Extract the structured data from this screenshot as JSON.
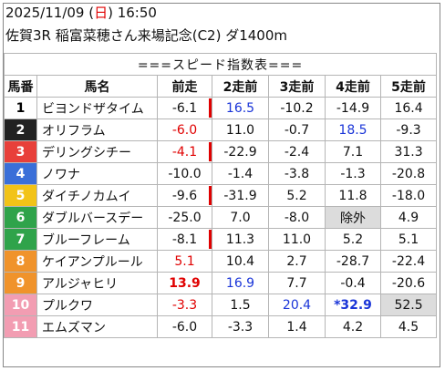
{
  "header": {
    "date_prefix": "2025/11/09 (",
    "weekday": "日",
    "date_suffix": ") 16:50",
    "race_line": "佐賀3R 稲富菜穂さん来場記念(C2) ダ1400m"
  },
  "table": {
    "title": "===スピード指数表===",
    "columns": [
      "馬番",
      "馬名",
      "前走",
      "2走前",
      "3走前",
      "4走前",
      "5走前"
    ],
    "rows": [
      {
        "num": "1",
        "name": "ビヨンドザタイム",
        "bg": "#ffffff",
        "fg": "#000000",
        "vals": [
          "-6.1",
          "16.5",
          "-10.2",
          "-14.9",
          "16.4"
        ],
        "colors": [
          "#111111",
          "#1a35d8",
          "#111111",
          "#111111",
          "#111111"
        ],
        "bold": [
          false,
          false,
          false,
          false,
          false
        ],
        "cellbg": [
          "",
          "",
          "",
          "",
          ""
        ],
        "redbar": true
      },
      {
        "num": "2",
        "name": "オリフラム",
        "bg": "#222222",
        "fg": "#ffffff",
        "vals": [
          "-6.0",
          "11.0",
          "-0.7",
          "18.5",
          "-9.3"
        ],
        "colors": [
          "#e00000",
          "#111111",
          "#111111",
          "#1a35d8",
          "#111111"
        ],
        "bold": [
          false,
          false,
          false,
          false,
          false
        ],
        "cellbg": [
          "",
          "",
          "",
          "",
          ""
        ],
        "redbar": false
      },
      {
        "num": "3",
        "name": "デリングシチー",
        "bg": "#e8403a",
        "fg": "#ffffff",
        "vals": [
          "-4.1",
          "-22.9",
          "-2.4",
          "7.1",
          "31.3"
        ],
        "colors": [
          "#e00000",
          "#111111",
          "#111111",
          "#111111",
          "#111111"
        ],
        "bold": [
          false,
          false,
          false,
          false,
          false
        ],
        "cellbg": [
          "",
          "",
          "",
          "",
          ""
        ],
        "redbar": true
      },
      {
        "num": "4",
        "name": "ノワナ",
        "bg": "#3a6fd8",
        "fg": "#ffffff",
        "vals": [
          "-10.0",
          "-1.4",
          "-3.8",
          "-1.3",
          "-20.8"
        ],
        "colors": [
          "#111111",
          "#111111",
          "#111111",
          "#111111",
          "#111111"
        ],
        "bold": [
          false,
          false,
          false,
          false,
          false
        ],
        "cellbg": [
          "",
          "",
          "",
          "",
          ""
        ],
        "redbar": false
      },
      {
        "num": "5",
        "name": "ダイチノカムイ",
        "bg": "#f2c318",
        "fg": "#ffffff",
        "vals": [
          "-9.6",
          "-31.9",
          "5.2",
          "11.8",
          "-18.0"
        ],
        "colors": [
          "#111111",
          "#111111",
          "#111111",
          "#111111",
          "#111111"
        ],
        "bold": [
          false,
          false,
          false,
          false,
          false
        ],
        "cellbg": [
          "",
          "",
          "",
          "",
          ""
        ],
        "redbar": true
      },
      {
        "num": "6",
        "name": "ダブルバースデー",
        "bg": "#2fa34a",
        "fg": "#ffffff",
        "vals": [
          "-25.0",
          "7.0",
          "-8.0",
          "除外",
          "4.9"
        ],
        "colors": [
          "#111111",
          "#111111",
          "#111111",
          "#111111",
          "#111111"
        ],
        "bold": [
          false,
          false,
          false,
          false,
          false
        ],
        "cellbg": [
          "",
          "",
          "",
          "#dcdcdc",
          ""
        ],
        "redbar": false
      },
      {
        "num": "7",
        "name": "ブルーフレーム",
        "bg": "#2fa34a",
        "fg": "#ffffff",
        "vals": [
          "-8.1",
          "11.3",
          "11.0",
          "5.2",
          "5.1"
        ],
        "colors": [
          "#111111",
          "#111111",
          "#111111",
          "#111111",
          "#111111"
        ],
        "bold": [
          false,
          false,
          false,
          false,
          false
        ],
        "cellbg": [
          "",
          "",
          "",
          "",
          ""
        ],
        "redbar": true
      },
      {
        "num": "8",
        "name": "ケイアンプルール",
        "bg": "#f0932b",
        "fg": "#ffffff",
        "vals": [
          "5.1",
          "10.4",
          "2.7",
          "-28.7",
          "-22.4"
        ],
        "colors": [
          "#e00000",
          "#111111",
          "#111111",
          "#111111",
          "#111111"
        ],
        "bold": [
          false,
          false,
          false,
          false,
          false
        ],
        "cellbg": [
          "",
          "",
          "",
          "",
          ""
        ],
        "redbar": false
      },
      {
        "num": "9",
        "name": "アルジャヒリ",
        "bg": "#f0932b",
        "fg": "#ffffff",
        "vals": [
          "13.9",
          "16.9",
          "7.7",
          "-0.4",
          "-20.6"
        ],
        "colors": [
          "#e00000",
          "#1a35d8",
          "#111111",
          "#111111",
          "#111111"
        ],
        "bold": [
          true,
          false,
          false,
          false,
          false
        ],
        "cellbg": [
          "",
          "",
          "",
          "",
          ""
        ],
        "redbar": false
      },
      {
        "num": "10",
        "name": "プルクワ",
        "bg": "#f29db2",
        "fg": "#ffffff",
        "vals": [
          "-3.3",
          "1.5",
          "20.4",
          "*32.9",
          "52.5"
        ],
        "colors": [
          "#e00000",
          "#111111",
          "#1a35d8",
          "#1a35d8",
          "#111111"
        ],
        "bold": [
          false,
          false,
          false,
          true,
          false
        ],
        "cellbg": [
          "",
          "",
          "",
          "",
          "#dcdcdc"
        ],
        "redbar": false
      },
      {
        "num": "11",
        "name": "エムズマン",
        "bg": "#f29db2",
        "fg": "#ffffff",
        "vals": [
          "-6.0",
          "-3.3",
          "1.4",
          "4.2",
          "4.5"
        ],
        "colors": [
          "#111111",
          "#111111",
          "#111111",
          "#111111",
          "#111111"
        ],
        "bold": [
          false,
          false,
          false,
          false,
          false
        ],
        "cellbg": [
          "",
          "",
          "",
          "",
          ""
        ],
        "redbar": false
      }
    ]
  }
}
